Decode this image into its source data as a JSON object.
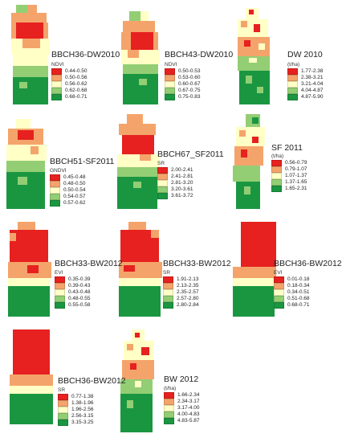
{
  "colors": [
    "#e6211f",
    "#f4a46b",
    "#ffffc6",
    "#93ce74",
    "#1a9641"
  ],
  "panels": [
    {
      "title": "BBCH36-DW2010",
      "index": "NDVI",
      "classes": [
        "0.44-0.50",
        "0.50-0.56",
        "0.56-0.62",
        "0.62-0.68",
        "0.68-0.71"
      ]
    },
    {
      "title": "BBCH43-DW2010",
      "index": "NDVI",
      "classes": [
        "0.50-0.53",
        "0.53-0.60",
        "0.60-0.67",
        "0.67-0.75",
        "0.75-0.83"
      ]
    },
    {
      "title": "DW 2010",
      "index": "(t/ha)",
      "classes": [
        "1.77-2.38",
        "2.38-3.21",
        "3.21-4.04",
        "4.04-4.87",
        "4.87-5.90"
      ]
    },
    {
      "title": "BBCH51-SF2011",
      "index": "GNDVI",
      "classes": [
        "0.45-0.48",
        "0.48-0.50",
        "0.50-0.54",
        "0.54-0.57",
        "0.57-0.62"
      ]
    },
    {
      "title": "BBCH67_SF2011",
      "index": "SR",
      "classes": [
        "2.00-2.41",
        "2.41-2.81",
        "2.81-3.20",
        "3.20-3.61",
        "3.61-3.72"
      ]
    },
    {
      "title": "SF 2011",
      "index": "(t/ha)",
      "classes": [
        "0.56-0.79",
        "0.79-1.07",
        "1.07-1.37",
        "1.37-1.65",
        "1.65-2.31"
      ]
    },
    {
      "title": "BBCH33-BW2012",
      "index": "EVI",
      "classes": [
        "0.35-0.39",
        "0.39-0.43",
        "0.43-0.48",
        "0.48-0.55",
        "0.55-0.58"
      ]
    },
    {
      "title": "BBCH33-BW2012",
      "index": "SR",
      "classes": [
        "1.91-2.13",
        "2.13-2.35",
        "2.35-2.57",
        "2.57-2.80",
        "2.80-2.84"
      ]
    },
    {
      "title": "BBCH36-BW2012",
      "index": "EVI",
      "classes": [
        "0.01-0.18",
        "0.18-0.34",
        "0.34-0.51",
        "0.51-0.68",
        "0.68-0.71"
      ]
    },
    {
      "title": "BBCH36-BW2012",
      "index": "SR",
      "classes": [
        "0.77-1.38",
        "1.38-1.96",
        "1.96-2.56",
        "2.56-3.15",
        "3.15-3.25"
      ]
    },
    {
      "title": "BW 2012",
      "index": "(t/ha)",
      "classes": [
        "1.66-2.34",
        "2.34-3.17",
        "3.17-4.00",
        "4.00-4.83",
        "4.83-5.87"
      ]
    }
  ]
}
